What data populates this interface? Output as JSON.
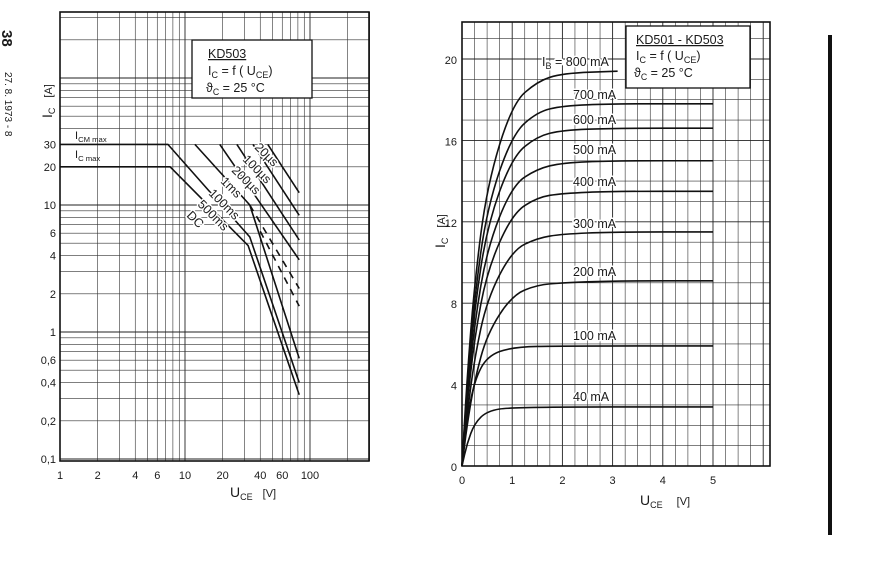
{
  "margin": {
    "page_number": "38",
    "date_stamp": "27. 8. 1973 - 8"
  },
  "chart_data": [
    {
      "type": "line",
      "scale": {
        "x": "log",
        "y": "log"
      },
      "grid": true,
      "xlim": [
        1,
        300
      ],
      "ylim": [
        0.1,
        300
      ],
      "xlabel": {
        "main": "U",
        "sub": "CE",
        "unit": "[V]"
      },
      "ylabel": {
        "main": "I",
        "sub": "C",
        "unit": "[A]"
      },
      "xticks": [
        1,
        2,
        4,
        6,
        10,
        20,
        40,
        60,
        100
      ],
      "xtick_labels": [
        "1",
        "2",
        "4",
        "6",
        "10",
        "20",
        "40",
        "60",
        "100"
      ],
      "yticks": [
        0.1,
        0.2,
        0.4,
        0.6,
        1,
        2,
        4,
        6,
        10,
        20,
        30
      ],
      "ytick_labels": [
        "0,1",
        "0,2",
        "0,4",
        "0,6",
        "1",
        "2",
        "4",
        "6",
        "10",
        "20",
        "30"
      ],
      "info_box": {
        "title": "KD503",
        "formula": {
          "a": "I",
          "a_sub": "C",
          "b": " = f ( U",
          "b_sub": "CE",
          "c": ")"
        },
        "temp": {
          "a": "ϑ",
          "a_sub": "C",
          "b": " = 25 °C"
        }
      },
      "limit_labels": [
        {
          "main": "I",
          "sub": "CM max",
          "value": 30
        },
        {
          "main": "I",
          "sub": "C max",
          "value": 20
        }
      ],
      "series": [
        {
          "name": "DC",
          "style": "solid",
          "points": [
            [
              1,
              20
            ],
            [
              7.6,
              20
            ],
            [
              32,
              4.8
            ],
            [
              82,
              0.32
            ]
          ]
        },
        {
          "name": "500ms",
          "style": "solid",
          "points": [
            [
              1,
              30
            ],
            [
              7.3,
              30
            ],
            [
              33,
              5.6
            ],
            [
              82,
              0.4
            ]
          ]
        },
        {
          "name": "100ms",
          "style": "solid",
          "points": [
            [
              12,
              30
            ],
            [
              33,
              10
            ],
            [
              82,
              0.62
            ]
          ]
        },
        {
          "name": "1ms",
          "style": "solid",
          "points": [
            [
              19,
              30
            ],
            [
              82,
              3.7
            ]
          ]
        },
        {
          "name": "200µs",
          "style": "solid",
          "points": [
            [
              26,
              30
            ],
            [
              82,
              5.3
            ]
          ]
        },
        {
          "name": "100µs",
          "style": "solid",
          "points": [
            [
              35,
              30
            ],
            [
              82,
              8.3
            ]
          ]
        },
        {
          "name": "20µs",
          "style": "solid",
          "points": [
            [
              46,
              30
            ],
            [
              82,
              12.5
            ]
          ]
        },
        {
          "style": "dashed",
          "points": [
            [
              33,
              10
            ],
            [
              82,
              2.2
            ]
          ]
        },
        {
          "style": "dashed",
          "points": [
            [
              40,
              6.2
            ],
            [
              82,
              1.6
            ]
          ]
        }
      ]
    },
    {
      "type": "line",
      "grid": true,
      "xlim": [
        0,
        6.1
      ],
      "ylim": [
        0,
        21.8
      ],
      "xlabel": {
        "main": "U",
        "sub": "CE",
        "unit": "[V]"
      },
      "ylabel": {
        "main": "I",
        "sub": "C",
        "unit": "[A]"
      },
      "xticks": [
        0,
        1,
        2,
        3,
        4,
        5
      ],
      "xtick_labels": [
        "0",
        "1",
        "2",
        "3",
        "4",
        "5"
      ],
      "yticks": [
        0,
        4,
        8,
        12,
        16,
        20
      ],
      "ytick_labels": [
        "0",
        "4",
        "8",
        "12",
        "16",
        "20"
      ],
      "info_box": {
        "title": "KD501 - KD503",
        "formula": {
          "a": "I",
          "a_sub": "C",
          "b": " = f ( U",
          "b_sub": "CE",
          "c": ")"
        },
        "temp": {
          "a": "ϑ",
          "a_sub": "C",
          "b": " = 25 °C"
        }
      },
      "series_prefix": {
        "main": "I",
        "sub": "B",
        "eq": " = "
      },
      "series": [
        {
          "name": "800 mA",
          "points": [
            [
              0,
              0
            ],
            [
              0.1,
              4.3
            ],
            [
              0.25,
              9.0
            ],
            [
              0.5,
              13.8
            ],
            [
              1,
              17.8
            ],
            [
              1.5,
              18.9
            ],
            [
              2,
              19.3
            ],
            [
              3.1,
              19.4
            ]
          ]
        },
        {
          "name": "700 mA",
          "points": [
            [
              0,
              0
            ],
            [
              0.1,
              3.9
            ],
            [
              0.25,
              8.3
            ],
            [
              0.5,
              12.7
            ],
            [
              1,
              16.3
            ],
            [
              1.5,
              17.4
            ],
            [
              2,
              17.7
            ],
            [
              3,
              17.8
            ],
            [
              5,
              17.8
            ]
          ]
        },
        {
          "name": "600 mA",
          "points": [
            [
              0,
              0
            ],
            [
              0.1,
              3.7
            ],
            [
              0.25,
              7.7
            ],
            [
              0.5,
              11.8
            ],
            [
              1,
              15.2
            ],
            [
              1.5,
              16.2
            ],
            [
              2,
              16.5
            ],
            [
              3,
              16.6
            ],
            [
              5,
              16.6
            ]
          ]
        },
        {
          "name": "500 mA",
          "points": [
            [
              0,
              0
            ],
            [
              0.1,
              3.3
            ],
            [
              0.25,
              7.0
            ],
            [
              0.5,
              10.7
            ],
            [
              1,
              13.8
            ],
            [
              1.5,
              14.6
            ],
            [
              2,
              14.9
            ],
            [
              3,
              15.0
            ],
            [
              5,
              15.0
            ]
          ]
        },
        {
          "name": "400 mA",
          "points": [
            [
              0,
              0
            ],
            [
              0.1,
              3.0
            ],
            [
              0.25,
              6.3
            ],
            [
              0.5,
              9.6
            ],
            [
              1,
              12.4
            ],
            [
              1.5,
              13.2
            ],
            [
              2,
              13.4
            ],
            [
              3,
              13.5
            ],
            [
              5,
              13.5
            ]
          ]
        },
        {
          "name": "300 mA",
          "points": [
            [
              0,
              0
            ],
            [
              0.1,
              2.5
            ],
            [
              0.25,
              5.3
            ],
            [
              0.5,
              8.2
            ],
            [
              1,
              10.6
            ],
            [
              1.5,
              11.2
            ],
            [
              2,
              11.4
            ],
            [
              3,
              11.5
            ],
            [
              5,
              11.5
            ]
          ]
        },
        {
          "name": "200 mA",
          "points": [
            [
              0,
              0
            ],
            [
              0.1,
              2.0
            ],
            [
              0.25,
              4.2
            ],
            [
              0.5,
              6.5
            ],
            [
              1,
              8.4
            ],
            [
              1.5,
              8.9
            ],
            [
              2,
              9.0
            ],
            [
              3,
              9.1
            ],
            [
              5,
              9.1
            ]
          ]
        },
        {
          "name": "100 mA",
          "points": [
            [
              0,
              0
            ],
            [
              0.1,
              2.3
            ],
            [
              0.25,
              4.2
            ],
            [
              0.5,
              5.4
            ],
            [
              1,
              5.85
            ],
            [
              2,
              5.9
            ],
            [
              5,
              5.9
            ]
          ]
        },
        {
          "name": "40 mA",
          "points": [
            [
              0,
              0
            ],
            [
              0.1,
              1.1
            ],
            [
              0.25,
              2.1
            ],
            [
              0.5,
              2.7
            ],
            [
              1,
              2.9
            ],
            [
              5,
              2.9
            ]
          ]
        }
      ]
    }
  ]
}
